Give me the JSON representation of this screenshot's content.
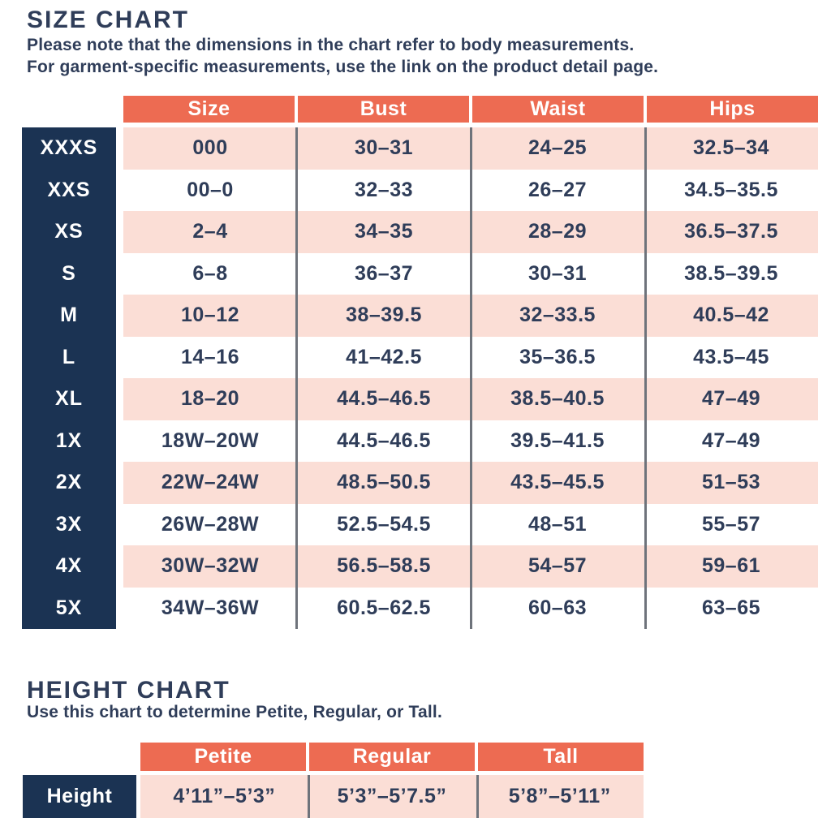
{
  "colors": {
    "salmon": "#ED6B52",
    "pink": "#FBDED6",
    "navy": "#1B3353",
    "text": "#2F3D59",
    "separator_line": "#6E737B",
    "background": "#FFFFFF"
  },
  "size_chart": {
    "title": "SIZE CHART",
    "note_line1": "Please note that the dimensions in the chart refer to body measurements.",
    "note_line2": "For garment-specific measurements, use the link on the product detail page.",
    "columns": [
      "Size",
      "Bust",
      "Waist",
      "Hips"
    ],
    "rows": [
      {
        "label": "XXXS",
        "values": [
          "000",
          "30–31",
          "24–25",
          "32.5–34"
        ]
      },
      {
        "label": "XXS",
        "values": [
          "00–0",
          "32–33",
          "26–27",
          "34.5–35.5"
        ]
      },
      {
        "label": "XS",
        "values": [
          "2–4",
          "34–35",
          "28–29",
          "36.5–37.5"
        ]
      },
      {
        "label": "S",
        "values": [
          "6–8",
          "36–37",
          "30–31",
          "38.5–39.5"
        ]
      },
      {
        "label": "M",
        "values": [
          "10–12",
          "38–39.5",
          "32–33.5",
          "40.5–42"
        ]
      },
      {
        "label": "L",
        "values": [
          "14–16",
          "41–42.5",
          "35–36.5",
          "43.5–45"
        ]
      },
      {
        "label": "XL",
        "values": [
          "18–20",
          "44.5–46.5",
          "38.5–40.5",
          "47–49"
        ]
      },
      {
        "label": "1X",
        "values": [
          "18W–20W",
          "44.5–46.5",
          "39.5–41.5",
          "47–49"
        ]
      },
      {
        "label": "2X",
        "values": [
          "22W–24W",
          "48.5–50.5",
          "43.5–45.5",
          "51–53"
        ]
      },
      {
        "label": "3X",
        "values": [
          "26W–28W",
          "52.5–54.5",
          "48–51",
          "55–57"
        ]
      },
      {
        "label": "4X",
        "values": [
          "30W–32W",
          "56.5–58.5",
          "54–57",
          "59–61"
        ]
      },
      {
        "label": "5X",
        "values": [
          "34W–36W",
          "60.5–62.5",
          "60–63",
          "63–65"
        ]
      }
    ]
  },
  "height_chart": {
    "title": "HEIGHT CHART",
    "note": "Use this chart to determine Petite, Regular, or Tall.",
    "columns": [
      "Petite",
      "Regular",
      "Tall"
    ],
    "row_label": "Height",
    "values": [
      "4’11”–5’3”",
      "5’3”–5’7.5”",
      "5’8”–5’11”"
    ]
  }
}
